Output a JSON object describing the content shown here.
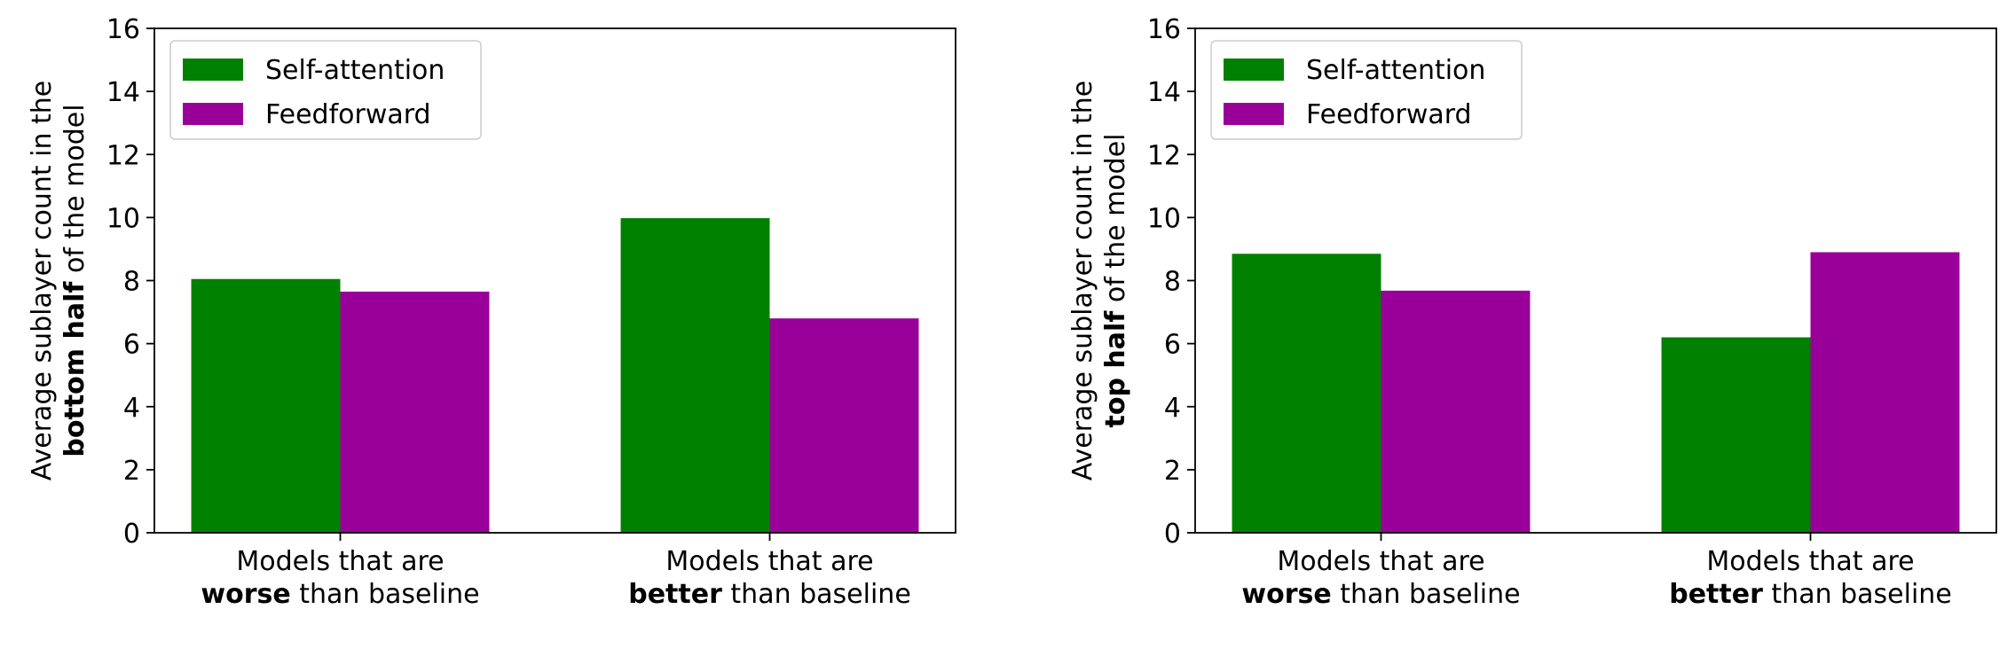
{
  "colors": {
    "self_attention": "#008000",
    "feedforward": "#990099",
    "axis": "#000000",
    "legend_border": "#cccccc"
  },
  "chart_data": [
    {
      "type": "bar",
      "legend_position": "top-left",
      "grid": false,
      "ylim": [
        0,
        16
      ],
      "yticks": [
        "0",
        "2",
        "4",
        "6",
        "8",
        "10",
        "12",
        "14",
        "16"
      ],
      "ylabel": {
        "line1": "Average sublayer count in the",
        "line2_bold": "bottom half",
        "line2_rest": " of the model"
      },
      "categories": [
        {
          "line1": "Models that are",
          "bold": "worse",
          "rest": " than baseline"
        },
        {
          "line1": "Models that are",
          "bold": "better",
          "rest": " than baseline"
        }
      ],
      "series": [
        {
          "name": "Self-attention",
          "values": [
            8.05,
            9.98
          ]
        },
        {
          "name": "Feedforward",
          "values": [
            7.65,
            6.8
          ]
        }
      ]
    },
    {
      "type": "bar",
      "legend_position": "top-left",
      "grid": false,
      "ylim": [
        0,
        16
      ],
      "yticks": [
        "0",
        "2",
        "4",
        "6",
        "8",
        "10",
        "12",
        "14",
        "16"
      ],
      "ylabel": {
        "line1": "Average sublayer count in the",
        "line2_bold": "top half",
        "line2_rest": " of the model"
      },
      "categories": [
        {
          "line1": "Models that are",
          "bold": "worse",
          "rest": " than baseline"
        },
        {
          "line1": "Models that are",
          "bold": "better",
          "rest": " than baseline"
        }
      ],
      "series": [
        {
          "name": "Self-attention",
          "values": [
            8.85,
            6.2
          ]
        },
        {
          "name": "Feedforward",
          "values": [
            7.68,
            8.9
          ]
        }
      ]
    }
  ]
}
